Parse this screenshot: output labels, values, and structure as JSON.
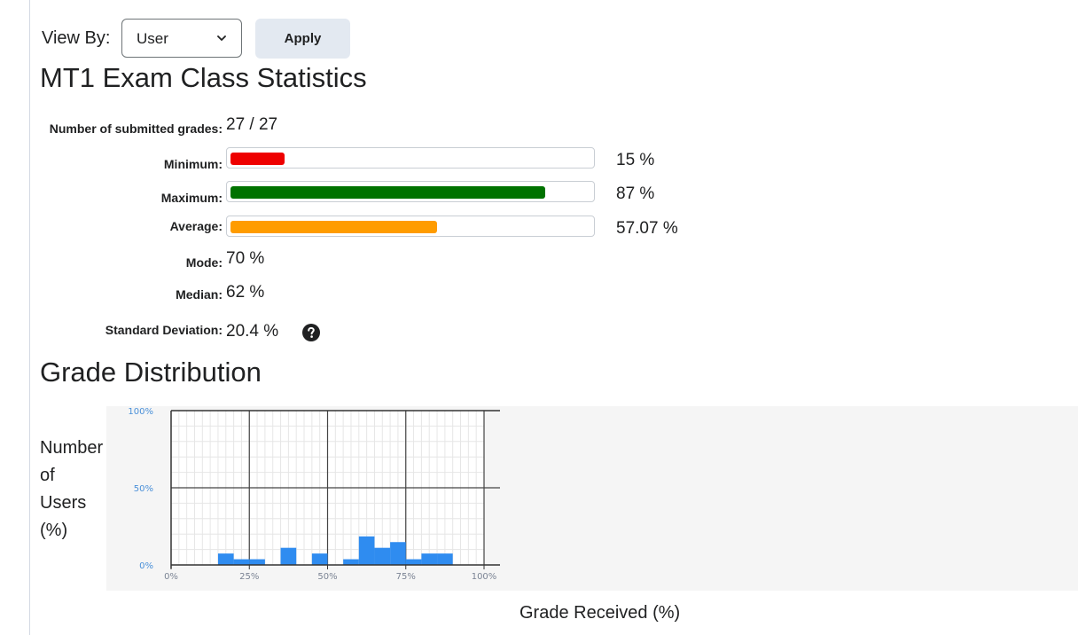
{
  "toolbar": {
    "view_by_label": "View By:",
    "view_by_value": "User",
    "apply_label": "Apply"
  },
  "title": "MT1 Exam Class Statistics",
  "stats": {
    "submitted_label": "Number of submitted grades:",
    "submitted_value": "27 / 27",
    "minimum_label": "Minimum:",
    "minimum_value": "15 %",
    "minimum_fraction": 0.15,
    "maximum_label": "Maximum:",
    "maximum_value": "87 %",
    "maximum_fraction": 0.87,
    "average_label": "Average:",
    "average_value": "57.07 %",
    "average_fraction": 0.5707,
    "mode_label": "Mode:",
    "mode_value": "70 %",
    "median_label": "Median:",
    "median_value": "62 %",
    "stddev_label": "Standard Deviation:",
    "stddev_value": "20.4 %"
  },
  "colors": {
    "minimum": "#ee0000",
    "maximum": "#007200",
    "average": "#ff9c00",
    "histogram": "#2f8cf0"
  },
  "distribution_title": "Grade Distribution",
  "chart_data": {
    "type": "bar",
    "xlabel": "Grade Received (%)",
    "ylabel": [
      "Number",
      "of",
      "Users",
      "(%)"
    ],
    "x_ticks": [
      "0%",
      "25%",
      "50%",
      "75%",
      "100%"
    ],
    "y_ticks": [
      "0%",
      "50%",
      "100%"
    ],
    "xlim": [
      0,
      100
    ],
    "ylim": [
      0,
      100
    ],
    "bin_width": 5,
    "bins": [
      {
        "start": 15,
        "value": 7.4
      },
      {
        "start": 20,
        "value": 3.7
      },
      {
        "start": 25,
        "value": 3.7
      },
      {
        "start": 35,
        "value": 11.1
      },
      {
        "start": 45,
        "value": 7.4
      },
      {
        "start": 55,
        "value": 3.7
      },
      {
        "start": 60,
        "value": 18.5
      },
      {
        "start": 65,
        "value": 11.1
      },
      {
        "start": 70,
        "value": 14.8
      },
      {
        "start": 75,
        "value": 3.7
      },
      {
        "start": 80,
        "value": 7.4
      },
      {
        "start": 85,
        "value": 7.4
      }
    ]
  }
}
